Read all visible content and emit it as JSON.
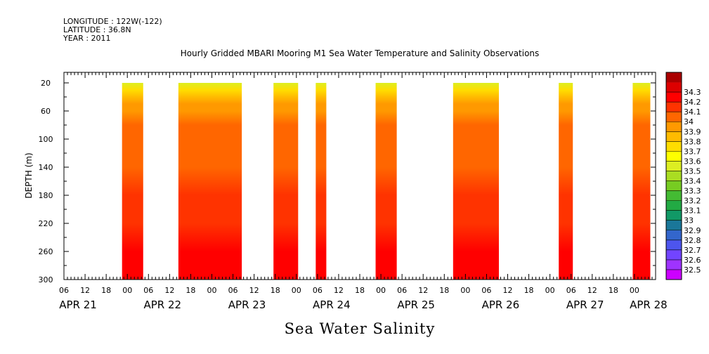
{
  "header": {
    "longitude": "LONGITUDE : 122W(-122)",
    "latitude": "LATITUDE : 36.8N",
    "year": "YEAR : 2011"
  },
  "chart_data": {
    "type": "heatmap",
    "title": "Hourly Gridded MBARI Mooring M1 Sea Water Temperature and Salinity Observations",
    "xlabel": "Sea Water Salinity",
    "ylabel": "DEPTH (m)",
    "y_reversed": true,
    "ylim": [
      300,
      5
    ],
    "y_ticks": [
      20,
      60,
      100,
      140,
      180,
      220,
      260,
      300
    ],
    "xlim_hours": [
      0,
      168
    ],
    "x_hour_ticks": [
      {
        "h": 0,
        "label": "06"
      },
      {
        "h": 6,
        "label": "12"
      },
      {
        "h": 12,
        "label": "18"
      },
      {
        "h": 18,
        "label": "00"
      },
      {
        "h": 24,
        "label": "06"
      },
      {
        "h": 30,
        "label": "12"
      },
      {
        "h": 36,
        "label": "18"
      },
      {
        "h": 42,
        "label": "00"
      },
      {
        "h": 48,
        "label": "06"
      },
      {
        "h": 54,
        "label": "12"
      },
      {
        "h": 60,
        "label": "18"
      },
      {
        "h": 66,
        "label": "00"
      },
      {
        "h": 72,
        "label": "06"
      },
      {
        "h": 78,
        "label": "12"
      },
      {
        "h": 84,
        "label": "18"
      },
      {
        "h": 90,
        "label": "00"
      },
      {
        "h": 96,
        "label": "06"
      },
      {
        "h": 102,
        "label": "12"
      },
      {
        "h": 108,
        "label": "18"
      },
      {
        "h": 114,
        "label": "00"
      },
      {
        "h": 120,
        "label": "06"
      },
      {
        "h": 126,
        "label": "12"
      },
      {
        "h": 132,
        "label": "18"
      },
      {
        "h": 138,
        "label": "00"
      },
      {
        "h": 144,
        "label": "06"
      },
      {
        "h": 150,
        "label": "12"
      },
      {
        "h": 156,
        "label": "18"
      },
      {
        "h": 162,
        "label": "00"
      }
    ],
    "day_labels": [
      {
        "h": 0,
        "label": "APR 21"
      },
      {
        "h": 24,
        "label": "APR 22"
      },
      {
        "h": 48,
        "label": "APR 23"
      },
      {
        "h": 72,
        "label": "APR 24"
      },
      {
        "h": 96,
        "label": "APR 25"
      },
      {
        "h": 120,
        "label": "APR 26"
      },
      {
        "h": 144,
        "label": "APR 27"
      },
      {
        "h": 162,
        "label": "APR 28"
      }
    ],
    "data_depth_range_m": [
      20,
      300
    ],
    "data_blocks_hours": [
      {
        "start": 16.5,
        "end": 22.5
      },
      {
        "start": 32.5,
        "end": 50.5
      },
      {
        "start": 59.5,
        "end": 66.5
      },
      {
        "start": 71.5,
        "end": 74.5
      },
      {
        "start": 88.5,
        "end": 94.5
      },
      {
        "start": 110.5,
        "end": 123.5
      },
      {
        "start": 140.5,
        "end": 144.5
      },
      {
        "start": 161.5,
        "end": 166.5
      }
    ],
    "salinity_profile": [
      {
        "depth": 20,
        "value": 33.5
      },
      {
        "depth": 30,
        "value": 33.7
      },
      {
        "depth": 40,
        "value": 33.85
      },
      {
        "depth": 50,
        "value": 33.9
      },
      {
        "depth": 60,
        "value": 33.95
      },
      {
        "depth": 80,
        "value": 34.0
      },
      {
        "depth": 100,
        "value": 34.02
      },
      {
        "depth": 120,
        "value": 34.05
      },
      {
        "depth": 140,
        "value": 34.08
      },
      {
        "depth": 180,
        "value": 34.1
      },
      {
        "depth": 220,
        "value": 34.13
      },
      {
        "depth": 260,
        "value": 34.2
      },
      {
        "depth": 300,
        "value": 34.22
      }
    ],
    "colorbar": {
      "levels": [
        32.5,
        32.6,
        32.7,
        32.8,
        32.9,
        33,
        33.1,
        33.2,
        33.3,
        33.4,
        33.5,
        33.6,
        33.7,
        33.8,
        33.9,
        34,
        34.1,
        34.2,
        34.3
      ],
      "labels": [
        "32.5",
        "32.6",
        "32.7",
        "32.8",
        "32.9",
        "33",
        "33.1",
        "33.2",
        "33.3",
        "33.4",
        "33.5",
        "33.6",
        "33.7",
        "33.8",
        "33.9",
        "34",
        "34.1",
        "34.2",
        "34.3"
      ],
      "colors": [
        "#cc00ff",
        "#9f33ff",
        "#7244ff",
        "#4d55ee",
        "#3366cc",
        "#1a7799",
        "#119966",
        "#22aa44",
        "#44bb33",
        "#77cc22",
        "#aadd22",
        "#ddee22",
        "#ffff00",
        "#ffdd00",
        "#ffbb00",
        "#ff9900",
        "#ff6600",
        "#ff3300",
        "#ff0000",
        "#dd0000",
        "#aa0000"
      ]
    }
  }
}
